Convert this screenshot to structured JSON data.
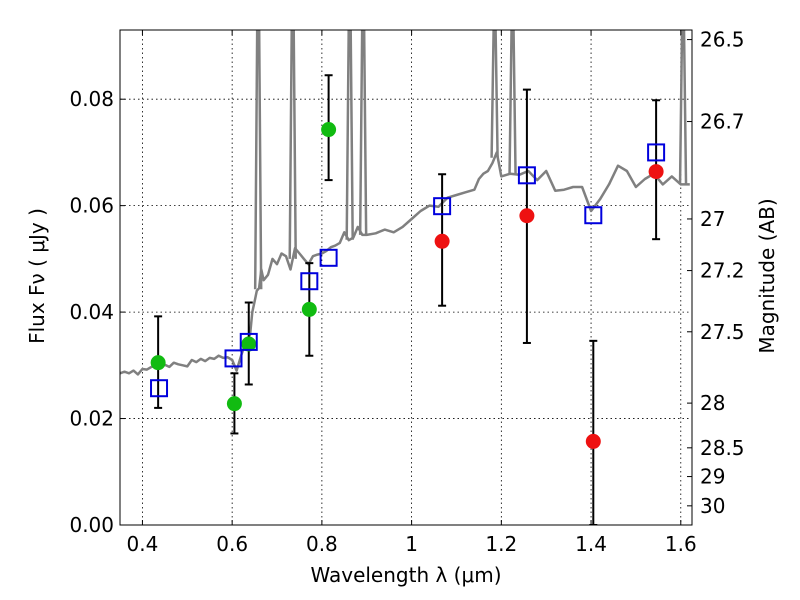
{
  "chart_data": {
    "type": "scatter",
    "xlabel": "Wavelength  λ (μm)",
    "ylabel": "Flux  Fν  ( μJy )",
    "y2label": "Magnitude (AB)",
    "xlim": [
      0.35,
      1.625
    ],
    "ylim": [
      0.0,
      0.093
    ],
    "grid": true,
    "x_ticks": [
      0.4,
      0.6,
      0.8,
      1.0,
      1.2,
      1.4,
      1.6
    ],
    "x_tick_labels": [
      "0.4",
      "0.6",
      "0.8",
      "1",
      "1.2",
      "1.4",
      "1.6"
    ],
    "y_ticks": [
      0.0,
      0.02,
      0.04,
      0.06,
      0.08
    ],
    "y_tick_labels": [
      "0.00",
      "0.02",
      "0.04",
      "0.06",
      "0.08"
    ],
    "mag_ticks": [
      {
        "label": "26.5",
        "flux": 0.0912
      },
      {
        "label": "26.7",
        "flux": 0.0758
      },
      {
        "label": "27",
        "flux": 0.0575
      },
      {
        "label": "27.2",
        "flux": 0.0478
      },
      {
        "label": "27.5",
        "flux": 0.0363
      },
      {
        "label": "28",
        "flux": 0.0229
      },
      {
        "label": "28.5",
        "flux": 0.0145
      },
      {
        "label": "29",
        "flux": 0.0091
      },
      {
        "label": "30",
        "flux": 0.0036
      }
    ],
    "colors": {
      "spectrum": "#808080",
      "green": "#11bb11",
      "red": "#ee1111",
      "model": "#0000dd",
      "errorbar": "#000000"
    },
    "spectrum": {
      "x": [
        0.35,
        0.36,
        0.37,
        0.38,
        0.39,
        0.4,
        0.41,
        0.42,
        0.43,
        0.44,
        0.45,
        0.46,
        0.47,
        0.48,
        0.49,
        0.5,
        0.51,
        0.52,
        0.53,
        0.54,
        0.55,
        0.56,
        0.57,
        0.58,
        0.59,
        0.6,
        0.61,
        0.62,
        0.63,
        0.64,
        0.645,
        0.65,
        0.655,
        0.66,
        0.665,
        0.67,
        0.68,
        0.69,
        0.7,
        0.71,
        0.72,
        0.73,
        0.74,
        0.75,
        0.76,
        0.77,
        0.78,
        0.79,
        0.8,
        0.81,
        0.82,
        0.83,
        0.84,
        0.85,
        0.86,
        0.87,
        0.88,
        0.89,
        0.9,
        0.92,
        0.94,
        0.96,
        0.98,
        1.0,
        1.02,
        1.04,
        1.06,
        1.08,
        1.1,
        1.12,
        1.14,
        1.15,
        1.16,
        1.17,
        1.18,
        1.19,
        1.2,
        1.22,
        1.24,
        1.26,
        1.28,
        1.3,
        1.32,
        1.34,
        1.36,
        1.38,
        1.4,
        1.42,
        1.44,
        1.46,
        1.48,
        1.5,
        1.52,
        1.54,
        1.56,
        1.58,
        1.6,
        1.61,
        1.62
      ],
      "y": [
        0.0285,
        0.0288,
        0.0285,
        0.029,
        0.0283,
        0.0293,
        0.0292,
        0.0297,
        0.03,
        0.0298,
        0.0301,
        0.0297,
        0.0305,
        0.0302,
        0.03,
        0.0298,
        0.031,
        0.0306,
        0.0312,
        0.0308,
        0.0314,
        0.0312,
        0.0318,
        0.0314,
        0.0315,
        0.031,
        0.029,
        0.0318,
        0.0343,
        0.0358,
        0.04,
        0.042,
        0.044,
        0.0445,
        0.048,
        0.046,
        0.047,
        0.05,
        0.049,
        0.051,
        0.0505,
        0.048,
        0.052,
        0.051,
        0.05,
        0.049,
        0.0505,
        0.0508,
        0.051,
        0.0515,
        0.0522,
        0.0525,
        0.053,
        0.055,
        0.0535,
        0.054,
        0.056,
        0.0545,
        0.0545,
        0.0548,
        0.0555,
        0.055,
        0.056,
        0.0575,
        0.059,
        0.06,
        0.0598,
        0.0615,
        0.062,
        0.0625,
        0.063,
        0.065,
        0.066,
        0.0665,
        0.068,
        0.07,
        0.0655,
        0.066,
        0.0658,
        0.0665,
        0.0648,
        0.0665,
        0.0628,
        0.063,
        0.0635,
        0.0635,
        0.059,
        0.0612,
        0.064,
        0.0675,
        0.0665,
        0.0635,
        0.065,
        0.066,
        0.064,
        0.0655,
        0.064,
        0.064,
        0.064
      ]
    },
    "spectrum_spikes": [
      {
        "x": 0.658,
        "y": 0.093
      },
      {
        "x": 0.735,
        "y": 0.093
      },
      {
        "x": 0.862,
        "y": 0.093
      },
      {
        "x": 0.892,
        "y": 0.093
      },
      {
        "x": 1.185,
        "y": 0.093
      },
      {
        "x": 1.225,
        "y": 0.093
      },
      {
        "x": 1.605,
        "y": 0.093
      }
    ],
    "series": [
      {
        "color_key": "green",
        "points": [
          {
            "x": 0.435,
            "y": 0.0305,
            "err": [
              0.022,
              0.0392
            ]
          },
          {
            "x": 0.605,
            "y": 0.0228,
            "err": [
              0.0172,
              0.0285
            ]
          },
          {
            "x": 0.637,
            "y": 0.034,
            "err": [
              0.0264,
              0.0418
            ]
          },
          {
            "x": 0.772,
            "y": 0.0405,
            "err": [
              0.0318,
              0.0492
            ]
          },
          {
            "x": 0.815,
            "y": 0.0743,
            "err": [
              0.0648,
              0.0845
            ]
          }
        ]
      },
      {
        "color_key": "red",
        "points": [
          {
            "x": 1.068,
            "y": 0.0533,
            "err": [
              0.0412,
              0.0659
            ]
          },
          {
            "x": 1.257,
            "y": 0.0581,
            "err": [
              0.0342,
              0.0818
            ]
          },
          {
            "x": 1.405,
            "y": 0.0157,
            "err": [
              0.0,
              0.0346
            ]
          },
          {
            "x": 1.545,
            "y": 0.0664,
            "err": [
              0.0537,
              0.0798
            ]
          }
        ]
      },
      {
        "color_key": "model",
        "points": [
          {
            "x": 0.437,
            "y": 0.0257
          },
          {
            "x": 0.603,
            "y": 0.0313
          },
          {
            "x": 0.637,
            "y": 0.0344
          },
          {
            "x": 0.772,
            "y": 0.0458
          },
          {
            "x": 0.815,
            "y": 0.0502
          },
          {
            "x": 1.068,
            "y": 0.0599
          },
          {
            "x": 1.257,
            "y": 0.0657
          },
          {
            "x": 1.405,
            "y": 0.0582
          },
          {
            "x": 1.545,
            "y": 0.07
          }
        ]
      }
    ]
  }
}
